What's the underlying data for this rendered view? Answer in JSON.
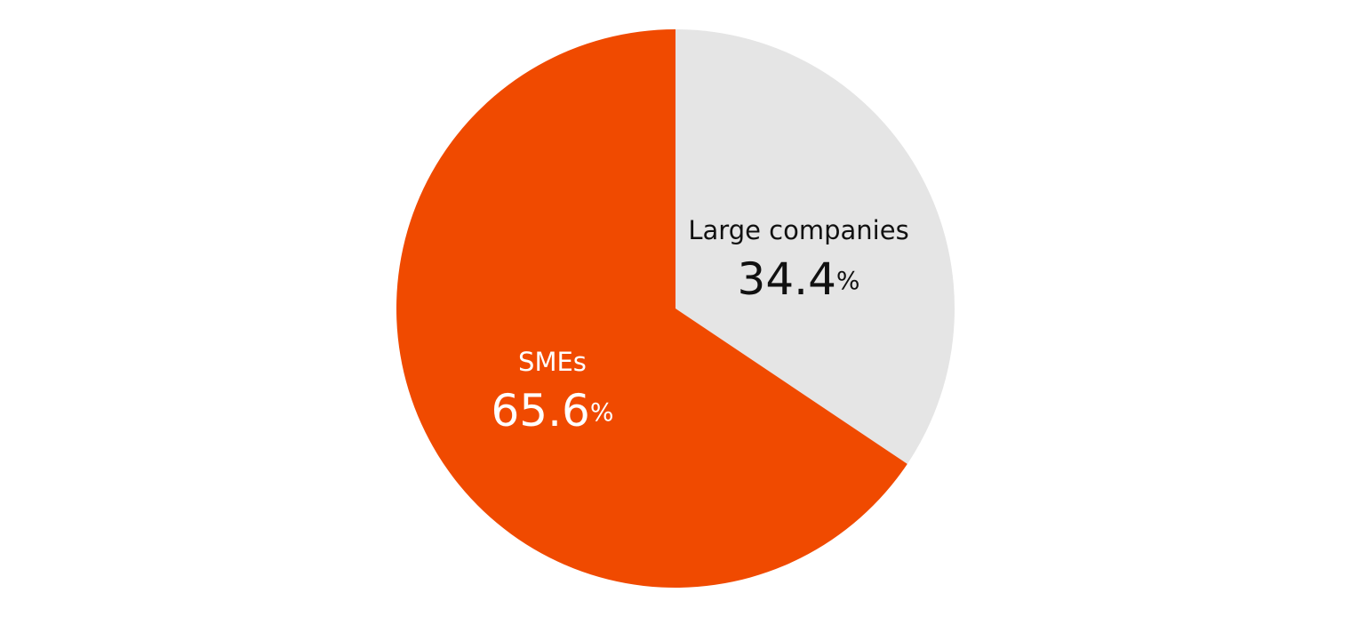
{
  "chart_data": {
    "type": "pie",
    "categories": [
      "Large companies",
      "SMEs"
    ],
    "values": [
      34.4,
      65.6
    ],
    "value_labels": [
      "34.4%",
      "65.6%"
    ],
    "colors": [
      "#e5e5e5",
      "#f04a00"
    ]
  }
}
